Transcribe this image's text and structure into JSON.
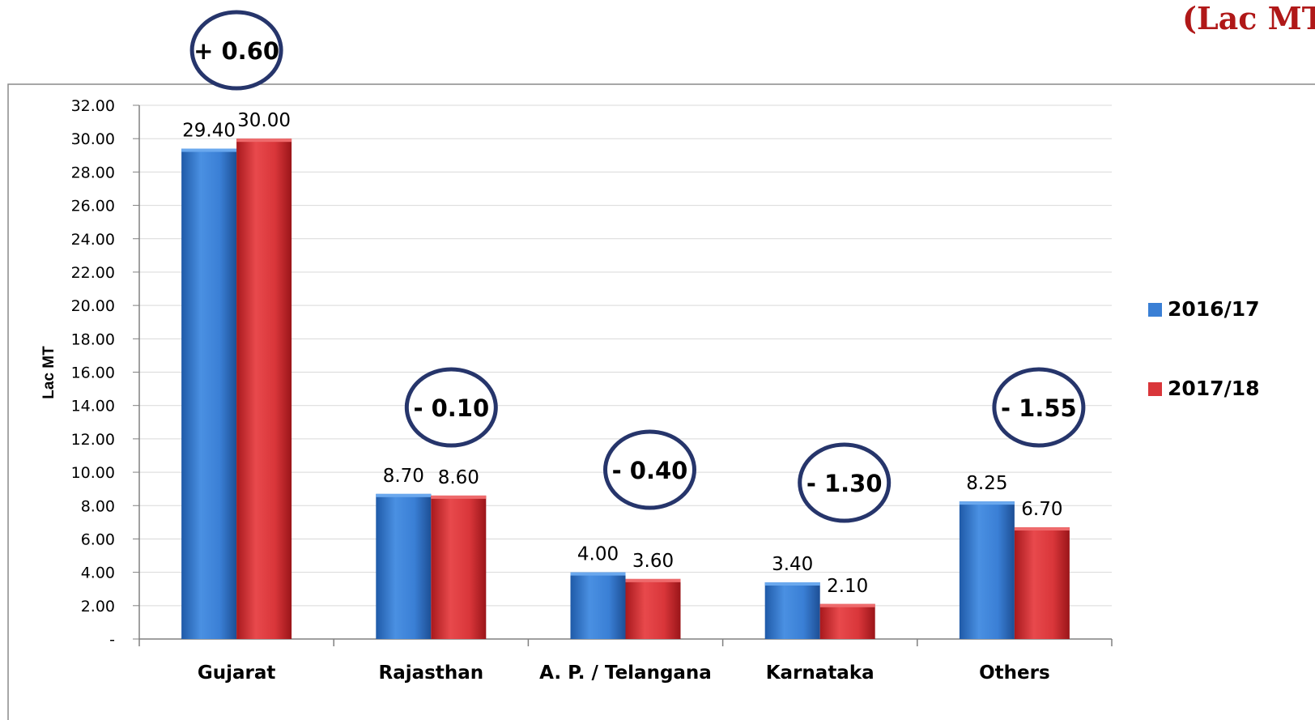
{
  "unit_label": "(Lac MT)",
  "chart_data": {
    "type": "bar",
    "categories": [
      "Gujarat",
      "Rajasthan",
      "A. P. / Telangana",
      "Karnataka",
      "Others"
    ],
    "series": [
      {
        "name": "2016/17",
        "values": [
          29.4,
          8.7,
          4.0,
          3.4,
          8.25
        ]
      },
      {
        "name": "2017/18",
        "values": [
          30.0,
          8.6,
          3.6,
          2.1,
          6.7
        ]
      }
    ],
    "value_labels": [
      [
        "29.40",
        "8.70",
        "4.00",
        "3.40",
        "8.25"
      ],
      [
        "30.00",
        "8.60",
        "3.60",
        "2.10",
        "6.70"
      ]
    ],
    "change_labels": [
      "+ 0.60",
      "- 0.10",
      "- 0.40",
      "- 1.30",
      "- 1.55"
    ],
    "ylabel": "Lac MT",
    "xlabel": "",
    "ylim": [
      0,
      32
    ],
    "yticks": [
      "-",
      "2.00",
      "4.00",
      "6.00",
      "8.00",
      "10.00",
      "12.00",
      "14.00",
      "16.00",
      "18.00",
      "20.00",
      "22.00",
      "24.00",
      "26.00",
      "28.00",
      "30.00",
      "32.00"
    ],
    "grid": true,
    "legend": "right",
    "colors": {
      "2016/17": "#3a7fd5",
      "2017/18": "#d9363a",
      "badge_border": "#26356b"
    }
  }
}
